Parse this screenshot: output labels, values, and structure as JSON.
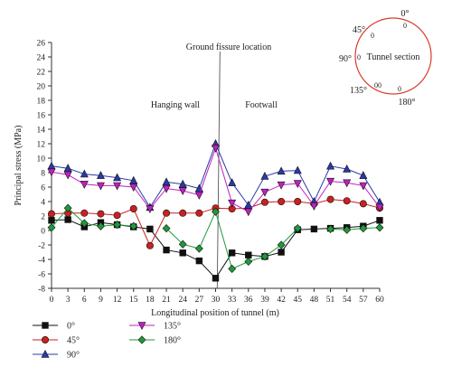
{
  "chart_data": {
    "type": "line",
    "title": "",
    "xlabel": "Longitudinal position of tunnel (m)",
    "ylabel": "Principal stress (MPa)",
    "xlim": [
      0,
      60
    ],
    "ylim": [
      -8,
      26
    ],
    "x_ticks": [
      "0",
      "3",
      "6",
      "9",
      "12",
      "15",
      "18",
      "21",
      "24",
      "27",
      "30",
      "33",
      "36",
      "39",
      "42",
      "45",
      "48",
      "51",
      "54",
      "57",
      "60"
    ],
    "y_ticks": [
      "-8",
      "-6",
      "-4",
      "-2",
      "0",
      "2",
      "4",
      "6",
      "8",
      "10",
      "12",
      "14",
      "16",
      "18",
      "20",
      "22",
      "24",
      "26"
    ],
    "grid": false,
    "x": [
      0,
      3,
      6,
      9,
      12,
      15,
      18,
      21,
      24,
      27,
      30,
      33,
      36,
      39,
      42,
      45,
      48,
      51,
      54,
      57,
      60
    ],
    "series": [
      {
        "name": "0°",
        "color": "#111111",
        "marker": "square",
        "values": [
          1.4,
          1.5,
          0.5,
          1.1,
          0.8,
          0.5,
          0.2,
          -2.7,
          -3.1,
          -4.2,
          -6.6,
          -3.1,
          -3.4,
          -3.6,
          -3.0,
          0.1,
          0.2,
          0.3,
          0.4,
          0.6,
          1.4
        ]
      },
      {
        "name": "45°",
        "color": "#cc2020",
        "marker": "circle",
        "values": [
          2.3,
          2.4,
          2.4,
          2.3,
          2.1,
          3.0,
          -2.1,
          2.4,
          2.4,
          2.4,
          3.1,
          3.0,
          3.1,
          3.9,
          4.0,
          4.0,
          3.7,
          4.3,
          4.1,
          3.7,
          3.1
        ]
      },
      {
        "name": "90°",
        "color": "#2a3aa8",
        "marker": "triangle-up",
        "values": [
          8.9,
          8.6,
          7.8,
          7.6,
          7.3,
          6.9,
          3.2,
          6.7,
          6.4,
          5.8,
          12.0,
          6.6,
          3.5,
          7.5,
          8.2,
          8.3,
          4.0,
          8.9,
          8.5,
          7.6,
          3.9
        ]
      },
      {
        "name": "135°",
        "color": "#c020c0",
        "marker": "triangle-down",
        "values": [
          8.1,
          7.7,
          6.4,
          6.2,
          6.2,
          6.0,
          3.0,
          5.8,
          5.5,
          4.9,
          11.4,
          3.8,
          2.6,
          5.3,
          6.3,
          6.5,
          3.4,
          6.8,
          6.6,
          6.2,
          3.2
        ]
      },
      {
        "name": "180°",
        "color": "#1f9a3a",
        "marker": "diamond",
        "values": [
          0.4,
          3.1,
          1.0,
          0.6,
          0.8,
          0.6,
          null,
          0.3,
          -1.9,
          -2.5,
          2.6,
          -5.3,
          -4.3,
          -3.6,
          -2.0,
          0.3,
          null,
          0.2,
          0.1,
          0.3,
          0.4
        ]
      }
    ],
    "annotations": [
      {
        "id": "ground-fissure",
        "text": "Ground fissure location"
      },
      {
        "id": "hanging-wall",
        "text": "Hanging wall"
      },
      {
        "id": "footwall",
        "text": "Footwall"
      }
    ],
    "legend": {
      "placement": "bottom-left"
    }
  },
  "inset": {
    "title": "Tunnel section",
    "angle_labels": [
      "0°",
      "45°",
      "90°",
      "135°",
      "180°"
    ],
    "zero_marks": [
      "0",
      "0",
      "0",
      "0",
      "0",
      "0"
    ],
    "circle_color": "#d93a2b"
  }
}
